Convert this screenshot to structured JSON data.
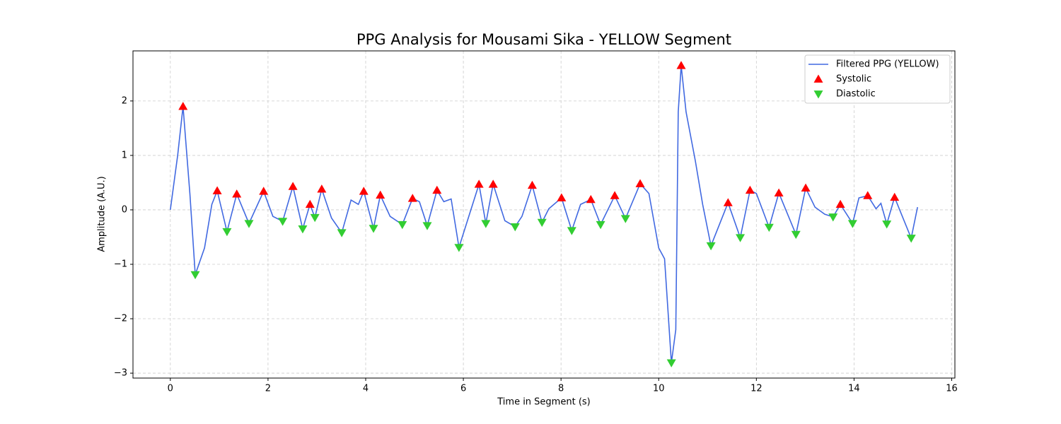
{
  "chart_data": {
    "type": "line",
    "title": "PPG Analysis for Mousami Sika - YELLOW Segment",
    "xlabel": "Time in Segment (s)",
    "ylabel": "Amplitude (A.U.)",
    "xlim": [
      -0.765,
      16.065
    ],
    "ylim": [
      -3.09,
      2.92
    ],
    "xticks": [
      0,
      2,
      4,
      6,
      8,
      10,
      12,
      14,
      16
    ],
    "yticks": [
      {
        "value": -3,
        "label": "−3"
      },
      {
        "value": -2,
        "label": "−2"
      },
      {
        "value": -1,
        "label": "−1"
      },
      0,
      1,
      2
    ],
    "grid": true,
    "legend": "upper right",
    "series": [
      {
        "name": "Filtered PPG (YELLOW)",
        "type": "line",
        "color": "#4169e1",
        "x": [
          0,
          0.15,
          0.26,
          0.4,
          0.51,
          0.7,
          0.85,
          0.96,
          1.16,
          1.36,
          1.61,
          1.91,
          2.1,
          2.3,
          2.51,
          2.71,
          2.86,
          2.96,
          3.1,
          3.3,
          3.51,
          3.7,
          3.85,
          3.96,
          4.16,
          4.3,
          4.5,
          4.75,
          4.96,
          5.1,
          5.26,
          5.46,
          5.6,
          5.75,
          5.91,
          6.32,
          6.46,
          6.61,
          6.85,
          7.06,
          7.2,
          7.41,
          7.61,
          7.75,
          8.01,
          8.22,
          8.4,
          8.61,
          8.81,
          9.1,
          9.32,
          9.62,
          9.8,
          10.0,
          10.12,
          10.26,
          10.35,
          10.4,
          10.46,
          10.56,
          10.75,
          10.9,
          11.07,
          11.42,
          11.67,
          11.87,
          12.0,
          12.26,
          12.46,
          12.81,
          13.01,
          13.2,
          13.4,
          13.57,
          13.72,
          13.97,
          14.1,
          14.28,
          14.45,
          14.55,
          14.67,
          14.83,
          15.17,
          15.3
        ],
        "values": [
          0,
          1.0,
          1.9,
          0.3,
          -1.19,
          -0.7,
          0.1,
          0.35,
          -0.4,
          0.29,
          -0.25,
          0.34,
          -0.12,
          -0.21,
          0.43,
          -0.35,
          0.1,
          -0.14,
          0.38,
          -0.15,
          -0.42,
          0.18,
          0.1,
          0.34,
          -0.34,
          0.27,
          -0.12,
          -0.27,
          0.21,
          0.15,
          -0.29,
          0.36,
          0.15,
          0.2,
          -0.69,
          0.47,
          -0.25,
          0.47,
          -0.2,
          -0.31,
          -0.12,
          0.45,
          -0.23,
          0.02,
          0.22,
          -0.38,
          0.1,
          0.19,
          -0.27,
          0.26,
          -0.16,
          0.48,
          0.3,
          -0.7,
          -0.9,
          -2.81,
          -2.2,
          1.8,
          2.65,
          1.8,
          0.9,
          0.1,
          -0.66,
          0.13,
          -0.51,
          0.36,
          0.3,
          -0.32,
          0.31,
          -0.45,
          0.4,
          0.05,
          -0.08,
          -0.13,
          0.1,
          -0.25,
          0.22,
          0.26,
          0.02,
          0.12,
          -0.26,
          0.23,
          -0.52,
          0.05
        ]
      },
      {
        "name": "Systolic",
        "type": "scatter",
        "marker": "up",
        "color": "#ff0000",
        "x": [
          0.26,
          0.96,
          1.36,
          1.91,
          2.51,
          2.86,
          3.1,
          3.96,
          4.3,
          4.96,
          5.46,
          6.32,
          6.61,
          7.41,
          8.01,
          8.61,
          9.1,
          9.62,
          10.46,
          11.42,
          11.87,
          12.46,
          13.01,
          13.72,
          14.28,
          14.83
        ],
        "values": [
          1.9,
          0.35,
          0.29,
          0.34,
          0.43,
          0.1,
          0.38,
          0.34,
          0.27,
          0.21,
          0.36,
          0.47,
          0.47,
          0.45,
          0.22,
          0.19,
          0.26,
          0.48,
          2.65,
          0.13,
          0.36,
          0.31,
          0.4,
          0.1,
          0.26,
          0.23
        ]
      },
      {
        "name": "Diastolic",
        "type": "scatter",
        "marker": "down",
        "color": "#32cd32",
        "x": [
          0.51,
          1.16,
          1.61,
          2.3,
          2.71,
          2.96,
          3.51,
          4.16,
          4.75,
          5.26,
          5.91,
          6.46,
          7.06,
          7.61,
          8.22,
          8.81,
          9.32,
          10.26,
          11.07,
          11.67,
          12.26,
          12.81,
          13.57,
          13.97,
          14.67,
          15.17
        ],
        "values": [
          -1.19,
          -0.4,
          -0.25,
          -0.21,
          -0.35,
          -0.14,
          -0.42,
          -0.34,
          -0.27,
          -0.29,
          -0.69,
          -0.25,
          -0.31,
          -0.23,
          -0.38,
          -0.27,
          -0.16,
          -2.81,
          -0.66,
          -0.51,
          -0.32,
          -0.45,
          -0.13,
          -0.25,
          -0.26,
          -0.52
        ]
      }
    ]
  }
}
